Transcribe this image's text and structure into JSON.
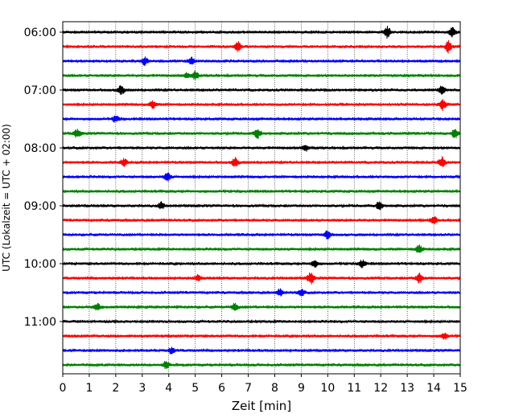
{
  "chart_data": {
    "type": "line",
    "title": "",
    "xlabel": "Zeit  [min]",
    "ylabel": "UTC (Lokalzeit = UTC + 02:00)",
    "xlim": [
      0,
      15
    ],
    "xticks": [
      "0",
      "1",
      "2",
      "3",
      "4",
      "5",
      "6",
      "7",
      "8",
      "9",
      "10",
      "11",
      "12",
      "13",
      "14",
      "15"
    ],
    "yticks": [
      "06:00",
      "07:00",
      "08:00",
      "09:00",
      "10:00",
      "11:00"
    ],
    "grid": "vertical dotted",
    "trace_colors": [
      "#000000",
      "#ff0000",
      "#0000ff",
      "#008000"
    ],
    "traces": [
      {
        "start": "06:00",
        "bursts": [
          [
            12.25,
            0.9
          ],
          [
            14.7,
            0.8
          ]
        ]
      },
      {
        "start": "06:15",
        "bursts": [
          [
            6.6,
            1.0
          ],
          [
            14.55,
            1.0
          ]
        ]
      },
      {
        "start": "06:30",
        "bursts": [
          [
            3.1,
            0.7
          ],
          [
            4.85,
            0.6
          ]
        ]
      },
      {
        "start": "06:45",
        "bursts": [
          [
            5.0,
            0.7
          ],
          [
            4.7,
            0.5
          ]
        ]
      },
      {
        "start": "07:00",
        "bursts": [
          [
            2.2,
            0.8
          ],
          [
            14.3,
            0.7
          ]
        ]
      },
      {
        "start": "07:15",
        "bursts": [
          [
            3.4,
            0.6
          ],
          [
            14.35,
            0.9
          ]
        ]
      },
      {
        "start": "07:30",
        "bursts": [
          [
            2.0,
            0.6
          ]
        ]
      },
      {
        "start": "07:45",
        "bursts": [
          [
            0.55,
            0.7
          ],
          [
            7.35,
            0.8
          ],
          [
            14.8,
            0.8
          ]
        ]
      },
      {
        "start": "08:00",
        "bursts": [
          [
            9.15,
            0.6
          ]
        ]
      },
      {
        "start": "08:15",
        "bursts": [
          [
            2.3,
            0.6
          ],
          [
            6.5,
            0.8
          ],
          [
            14.3,
            0.9
          ]
        ]
      },
      {
        "start": "08:30",
        "bursts": [
          [
            3.95,
            0.7
          ]
        ]
      },
      {
        "start": "08:45",
        "bursts": []
      },
      {
        "start": "09:00",
        "bursts": [
          [
            3.7,
            0.6
          ],
          [
            11.95,
            0.7
          ]
        ]
      },
      {
        "start": "09:15",
        "bursts": [
          [
            14.0,
            0.7
          ]
        ]
      },
      {
        "start": "09:30",
        "bursts": [
          [
            10.0,
            0.7
          ]
        ]
      },
      {
        "start": "09:45",
        "bursts": [
          [
            13.45,
            0.7
          ]
        ]
      },
      {
        "start": "10:00",
        "bursts": [
          [
            9.5,
            0.6
          ],
          [
            11.3,
            0.6
          ]
        ]
      },
      {
        "start": "10:15",
        "bursts": [
          [
            9.35,
            1.0
          ],
          [
            13.45,
            0.8
          ],
          [
            5.1,
            0.5
          ]
        ]
      },
      {
        "start": "10:30",
        "bursts": [
          [
            9.0,
            0.6
          ],
          [
            8.2,
            0.6
          ]
        ]
      },
      {
        "start": "10:45",
        "bursts": [
          [
            1.3,
            0.6
          ],
          [
            6.5,
            0.6
          ]
        ]
      },
      {
        "start": "11:00",
        "bursts": []
      },
      {
        "start": "11:15",
        "bursts": [
          [
            14.4,
            0.5
          ]
        ]
      },
      {
        "start": "11:30",
        "bursts": [
          [
            4.1,
            0.5
          ]
        ]
      },
      {
        "start": "11:45",
        "bursts": [
          [
            3.9,
            0.6
          ]
        ]
      }
    ]
  }
}
